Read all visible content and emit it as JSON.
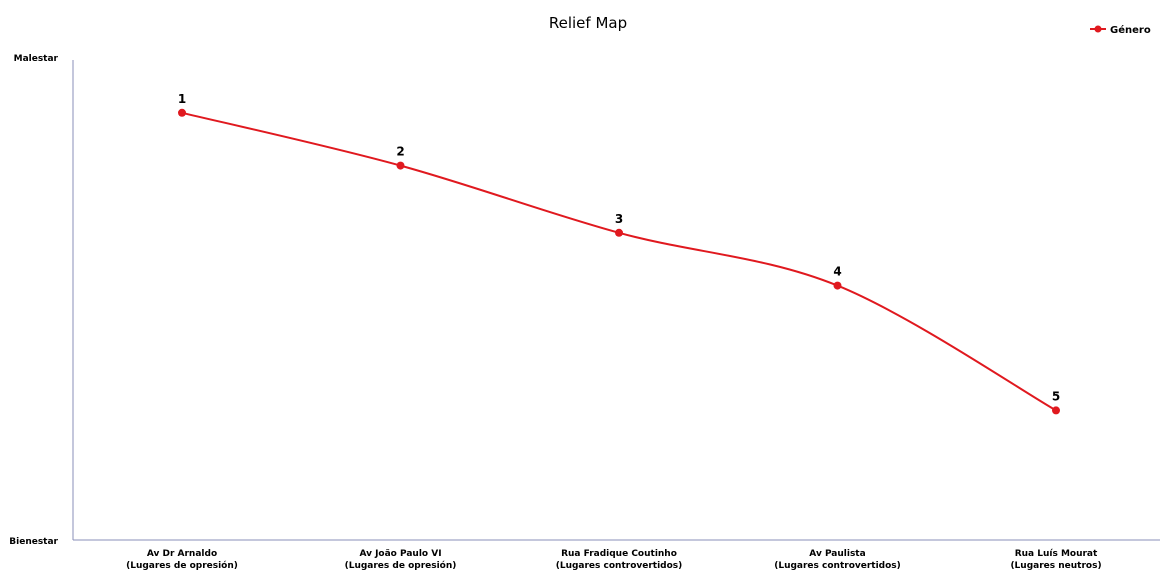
{
  "chart_data": {
    "type": "line",
    "title": "Relief Map",
    "xlabel": "",
    "ylabel": "",
    "categories": [
      [
        "Av Dr Arnaldo",
        "(Lugares de opresión)"
      ],
      [
        "Av João Paulo VI",
        "(Lugares de opresión)"
      ],
      [
        "Rua Fradique Coutinho",
        "(Lugares controvertidos)"
      ],
      [
        "Av Paulista",
        "(Lugares controvertidos)"
      ],
      [
        "Rua Luís Mourat",
        "(Lugares neutros)"
      ]
    ],
    "y_tick_labels": {
      "top": "Malestar",
      "bottom": "Bienestar"
    },
    "ylim": [
      0,
      10
    ],
    "series": [
      {
        "name": "Género",
        "color": "#e0191f",
        "values": [
          8.9,
          7.8,
          6.4,
          5.3,
          2.7
        ],
        "point_labels": [
          "1",
          "2",
          "3",
          "4",
          "5"
        ]
      }
    ],
    "legend": "top-right",
    "grid": false,
    "smooth": true
  }
}
